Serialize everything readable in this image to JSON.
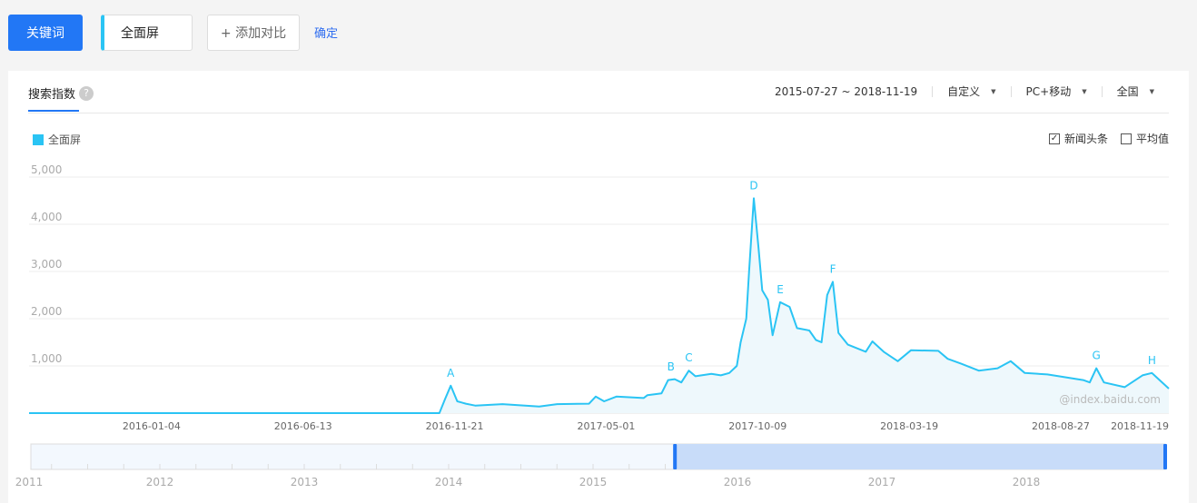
{
  "toolbar": {
    "keyword_button": "关键词",
    "term": "全面屏",
    "add_compare": "+ 添加对比",
    "confirm": "确定"
  },
  "panel": {
    "tab": "搜索指数",
    "help_icon": "question-icon",
    "date_range": "2015-07-27 ~ 2018-11-19",
    "custom": "自定义",
    "device": "PC+移动",
    "region": "全国",
    "options": [
      {
        "label": "新闻头条",
        "checked": true
      },
      {
        "label": "平均值",
        "checked": false
      }
    ],
    "watermark": "@index.baidu.com"
  },
  "colors": {
    "primary": "#2277f5",
    "series": "#2ac4f4",
    "fill": "#eef8fc"
  },
  "chart_data": {
    "type": "area",
    "xlim": [
      "2015-07-27",
      "2018-11-19"
    ],
    "ylim": [
      0,
      5000
    ],
    "yticks": [
      {
        "v": 1000,
        "l": "1,000"
      },
      {
        "v": 2000,
        "l": "2,000"
      },
      {
        "v": 3000,
        "l": "3,000"
      },
      {
        "v": 4000,
        "l": "4,000"
      },
      {
        "v": 5000,
        "l": "5,000"
      }
    ],
    "xticks": [
      "2016-01-04",
      "2016-06-13",
      "2016-11-21",
      "2017-05-01",
      "2017-10-09",
      "2018-03-19",
      "2018-08-27",
      "2018-11-19"
    ],
    "series": [
      {
        "name": "全面屏",
        "points": [
          [
            "2015-07-27",
            0
          ],
          [
            "2016-10-05",
            0
          ],
          [
            "2016-10-11",
            300
          ],
          [
            "2016-10-17",
            580
          ],
          [
            "2016-10-24",
            250
          ],
          [
            "2016-11-02",
            200
          ],
          [
            "2016-11-12",
            160
          ],
          [
            "2016-12-11",
            190
          ],
          [
            "2017-01-19",
            140
          ],
          [
            "2017-02-07",
            190
          ],
          [
            "2017-03-13",
            200
          ],
          [
            "2017-03-20",
            350
          ],
          [
            "2017-03-29",
            250
          ],
          [
            "2017-04-11",
            350
          ],
          [
            "2017-05-10",
            320
          ],
          [
            "2017-05-14",
            380
          ],
          [
            "2017-05-29",
            420
          ],
          [
            "2017-06-05",
            700
          ],
          [
            "2017-06-12",
            720
          ],
          [
            "2017-06-19",
            650
          ],
          [
            "2017-06-27",
            900
          ],
          [
            "2017-07-04",
            780
          ],
          [
            "2017-07-21",
            830
          ],
          [
            "2017-07-31",
            800
          ],
          [
            "2017-08-09",
            850
          ],
          [
            "2017-08-17",
            1000
          ],
          [
            "2017-08-21",
            1500
          ],
          [
            "2017-08-27",
            2000
          ],
          [
            "2017-08-30",
            3000
          ],
          [
            "2017-09-04",
            4550
          ],
          [
            "2017-09-09",
            3500
          ],
          [
            "2017-09-13",
            2600
          ],
          [
            "2017-09-19",
            2400
          ],
          [
            "2017-09-24",
            1650
          ],
          [
            "2017-10-02",
            2350
          ],
          [
            "2017-10-12",
            2250
          ],
          [
            "2017-10-20",
            1800
          ],
          [
            "2017-11-02",
            1750
          ],
          [
            "2017-11-09",
            1550
          ],
          [
            "2017-11-15",
            1500
          ],
          [
            "2017-11-21",
            2500
          ],
          [
            "2017-11-27",
            2780
          ],
          [
            "2017-12-03",
            1700
          ],
          [
            "2017-12-13",
            1450
          ],
          [
            "2018-01-01",
            1300
          ],
          [
            "2018-01-08",
            1520
          ],
          [
            "2018-01-20",
            1300
          ],
          [
            "2018-02-04",
            1100
          ],
          [
            "2018-02-18",
            1330
          ],
          [
            "2018-03-19",
            1320
          ],
          [
            "2018-03-29",
            1150
          ],
          [
            "2018-04-12",
            1050
          ],
          [
            "2018-05-01",
            900
          ],
          [
            "2018-05-21",
            950
          ],
          [
            "2018-06-04",
            1100
          ],
          [
            "2018-06-19",
            850
          ],
          [
            "2018-07-13",
            820
          ],
          [
            "2018-08-20",
            700
          ],
          [
            "2018-08-27",
            650
          ],
          [
            "2018-09-03",
            950
          ],
          [
            "2018-09-11",
            650
          ],
          [
            "2018-10-03",
            550
          ],
          [
            "2018-10-22",
            800
          ],
          [
            "2018-11-01",
            850
          ],
          [
            "2018-11-19",
            520
          ]
        ]
      }
    ],
    "annotations": [
      {
        "label": "A",
        "date": "2016-10-17"
      },
      {
        "label": "B",
        "date": "2017-06-08"
      },
      {
        "label": "C",
        "date": "2017-06-27"
      },
      {
        "label": "D",
        "date": "2017-09-04"
      },
      {
        "label": "E",
        "date": "2017-10-02"
      },
      {
        "label": "F",
        "date": "2017-11-27"
      },
      {
        "label": "G",
        "date": "2018-09-03"
      },
      {
        "label": "H",
        "date": "2018-11-01"
      }
    ],
    "navigator": {
      "years": [
        "2011",
        "2012",
        "2013",
        "2014",
        "2015",
        "2016",
        "2017",
        "2018"
      ],
      "selection": [
        "2015-07-27",
        "2018-11-19"
      ]
    }
  }
}
